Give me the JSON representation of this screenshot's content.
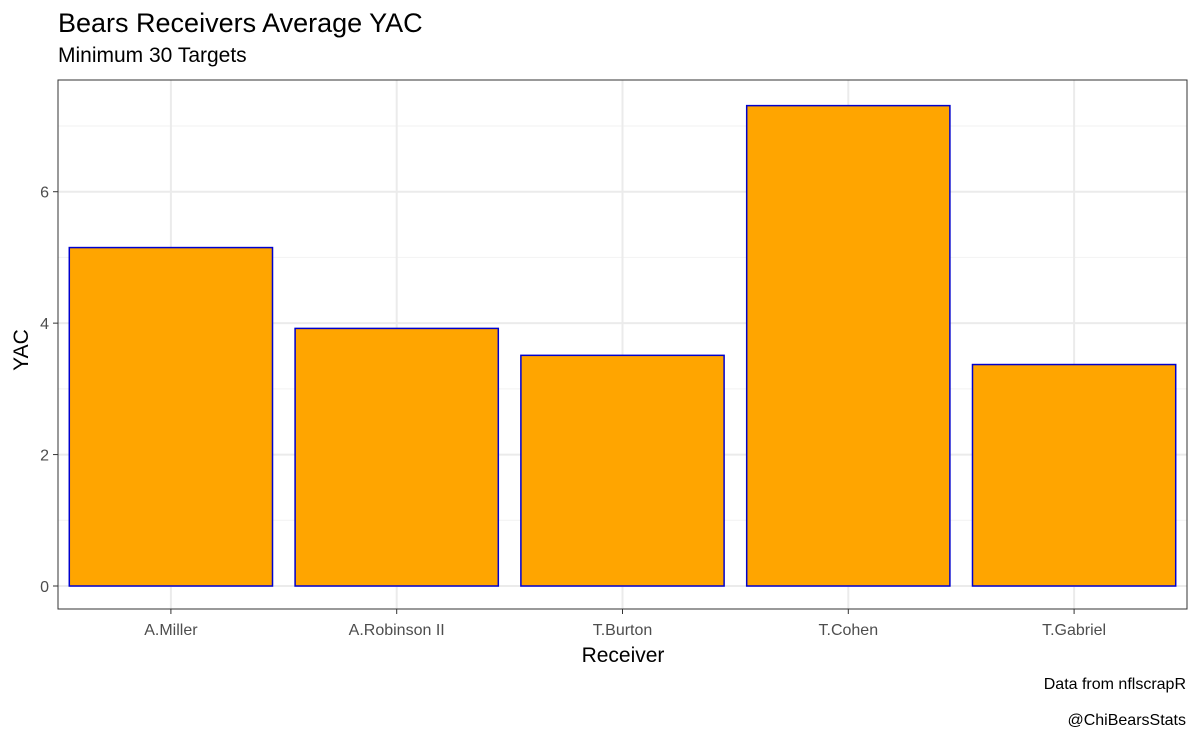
{
  "chart_data": {
    "type": "bar",
    "title": "Bears Receivers Average YAC",
    "subtitle": "Minimum 30 Targets",
    "xlabel": "Receiver",
    "ylabel": "YAC",
    "categories": [
      "A.Miller",
      "A.Robinson II",
      "T.Burton",
      "T.Cohen",
      "T.Gabriel"
    ],
    "values": [
      5.15,
      3.92,
      3.51,
      7.31,
      3.37
    ],
    "ylim": [
      -0.35,
      7.7
    ],
    "yticks": [
      0,
      2,
      4,
      6
    ],
    "grid": true,
    "legend": "none",
    "bar_fill": "#FFA500",
    "bar_outline": "#0000CD",
    "captions": [
      "Data from nflscrapR",
      "@ChiBearsStats"
    ]
  }
}
